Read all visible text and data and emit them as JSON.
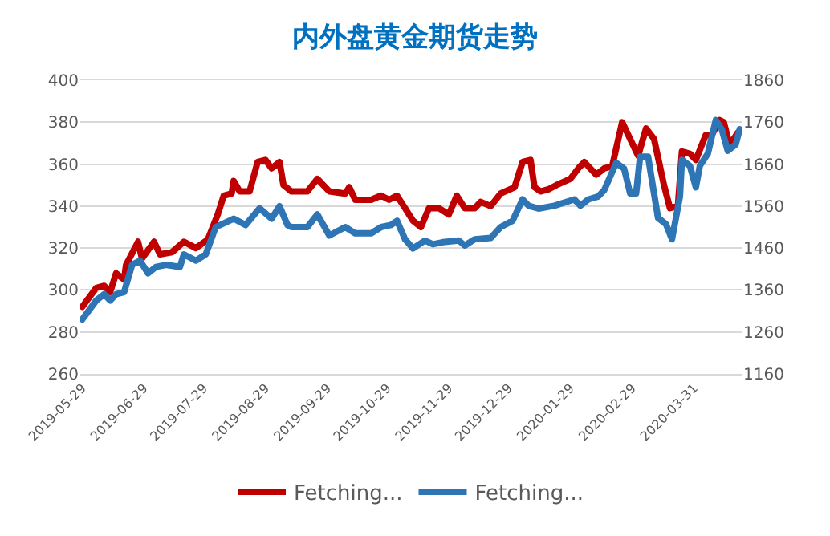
{
  "chart_data": {
    "type": "line",
    "title": "内外盘黄金期货走势",
    "xlim": [
      "2019-05-28",
      "2020-04-24"
    ],
    "xticks": [
      "2019-05-29",
      "2019-06-29",
      "2019-07-29",
      "2019-08-29",
      "2019-09-29",
      "2019-10-29",
      "2019-11-29",
      "2019-12-29",
      "2020-01-29",
      "2020-02-29",
      "2020-03-31"
    ],
    "ylim": [
      260,
      400
    ],
    "yticks": [
      260,
      280,
      300,
      320,
      340,
      360,
      380,
      400
    ],
    "y2lim": [
      1160,
      1860
    ],
    "y2ticks": [
      1160,
      1260,
      1360,
      1460,
      1560,
      1660,
      1760,
      1860
    ],
    "grid": "y",
    "legend": "bottom",
    "line_style": "solid",
    "marker": "none",
    "series": [
      {
        "name": "Fetching...",
        "color": "#c00000",
        "x": [
          "2019-05-29",
          "2019-06-05",
          "2019-06-09",
          "2019-06-12",
          "2019-06-15",
          "2019-06-19",
          "2019-06-20",
          "2019-06-26",
          "2019-06-28",
          "2019-07-04",
          "2019-07-07",
          "2019-07-13",
          "2019-07-19",
          "2019-07-25",
          "2019-07-31",
          "2019-08-05",
          "2019-08-08",
          "2019-08-12",
          "2019-08-13",
          "2019-08-16",
          "2019-08-21",
          "2019-08-25",
          "2019-08-29",
          "2019-09-01",
          "2019-09-05",
          "2019-09-07",
          "2019-09-11",
          "2019-09-19",
          "2019-09-24",
          "2019-09-30",
          "2019-10-08",
          "2019-10-10",
          "2019-10-13",
          "2019-10-21",
          "2019-10-26",
          "2019-10-30",
          "2019-11-03",
          "2019-11-07",
          "2019-11-11",
          "2019-11-15",
          "2019-11-19",
          "2019-11-24",
          "2019-11-29",
          "2019-12-03",
          "2019-12-07",
          "2019-12-12",
          "2019-12-15",
          "2019-12-20",
          "2019-12-25",
          "2020-01-01",
          "2020-01-05",
          "2020-01-09",
          "2020-01-11",
          "2020-01-14",
          "2020-01-18",
          "2020-01-22",
          "2020-01-29",
          "2020-02-02",
          "2020-02-05",
          "2020-02-11",
          "2020-02-15",
          "2020-02-19",
          "2020-02-24",
          "2020-03-03",
          "2020-03-07",
          "2020-03-11",
          "2020-03-16",
          "2020-03-19",
          "2020-03-23",
          "2020-03-25",
          "2020-03-29",
          "2020-04-01",
          "2020-04-06",
          "2020-04-09",
          "2020-04-13",
          "2020-04-15",
          "2020-04-18",
          "2020-04-22"
        ],
        "values": [
          292,
          301,
          302,
          299,
          308,
          305,
          312,
          323,
          315,
          323,
          317,
          318,
          323,
          320,
          324,
          336,
          345,
          346,
          352,
          347,
          347,
          361,
          362,
          358,
          361,
          350,
          347,
          347,
          353,
          347,
          346,
          349,
          343,
          343,
          345,
          343,
          345,
          339,
          333,
          330,
          339,
          339,
          336,
          345,
          339,
          339,
          342,
          340,
          346,
          349,
          361,
          362,
          349,
          347,
          348,
          350,
          353,
          358,
          361,
          355,
          358,
          359,
          380,
          364,
          377,
          372,
          350,
          339,
          340,
          366,
          365,
          362,
          374,
          374,
          381,
          380,
          369,
          375
        ]
      },
      {
        "name": "Fetching...",
        "color": "#2e75b6",
        "axis": "y2",
        "x": [
          "2019-05-29",
          "2019-06-05",
          "2019-06-09",
          "2019-06-12",
          "2019-06-15",
          "2019-06-19",
          "2019-06-23",
          "2019-06-27",
          "2019-07-01",
          "2019-07-05",
          "2019-07-10",
          "2019-07-17",
          "2019-07-19",
          "2019-07-25",
          "2019-07-30",
          "2019-08-04",
          "2019-08-13",
          "2019-08-19",
          "2019-08-26",
          "2019-09-01",
          "2019-09-05",
          "2019-09-09",
          "2019-09-11",
          "2019-09-19",
          "2019-09-24",
          "2019-09-30",
          "2019-10-08",
          "2019-10-13",
          "2019-10-21",
          "2019-10-26",
          "2019-10-31",
          "2019-11-03",
          "2019-11-07",
          "2019-11-11",
          "2019-11-17",
          "2019-11-21",
          "2019-11-26",
          "2019-12-04",
          "2019-12-07",
          "2019-12-12",
          "2019-12-20",
          "2019-12-25",
          "2019-12-31",
          "2020-01-05",
          "2020-01-08",
          "2020-01-13",
          "2020-01-21",
          "2020-01-31",
          "2020-02-03",
          "2020-02-07",
          "2020-02-12",
          "2020-02-15",
          "2020-02-21",
          "2020-02-25",
          "2020-02-28",
          "2020-03-02",
          "2020-03-04",
          "2020-03-08",
          "2020-03-13",
          "2020-03-17",
          "2020-03-20",
          "2020-03-24",
          "2020-03-25",
          "2020-03-29",
          "2020-04-01",
          "2020-04-03",
          "2020-04-07",
          "2020-04-11",
          "2020-04-14",
          "2020-04-17",
          "2020-04-21",
          "2020-04-23"
        ],
        "values": [
          1290,
          1335,
          1350,
          1335,
          1350,
          1355,
          1420,
          1430,
          1400,
          1415,
          1420,
          1415,
          1445,
          1430,
          1445,
          1510,
          1530,
          1515,
          1555,
          1530,
          1560,
          1515,
          1510,
          1510,
          1540,
          1490,
          1510,
          1495,
          1495,
          1510,
          1515,
          1525,
          1481,
          1459,
          1478,
          1469,
          1474,
          1478,
          1466,
          1481,
          1484,
          1510,
          1525,
          1576,
          1561,
          1554,
          1561,
          1576,
          1561,
          1576,
          1583,
          1598,
          1663,
          1649,
          1590,
          1590,
          1678,
          1678,
          1532,
          1517,
          1481,
          1583,
          1670,
          1656,
          1605,
          1656,
          1685,
          1765,
          1743,
          1692,
          1707,
          1743
        ]
      }
    ]
  }
}
